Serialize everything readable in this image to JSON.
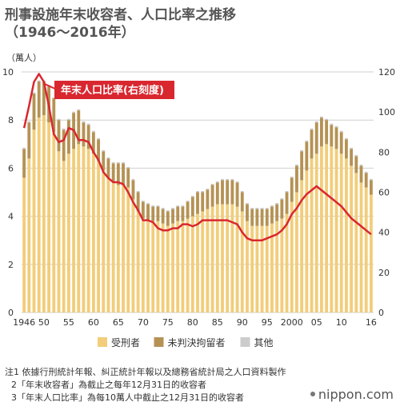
{
  "title_line1": "刑事設施年末收容者、人口比率之推移",
  "title_line2": "（1946～2016年）",
  "notes": [
    "注1 依據行刑統計年報、糾正統計年報以及總務省統計局之人口資料製作",
    "2「年末收容者」為截止之每年12月31日的收容者",
    "3「年末人口比率」為每10萬人中截止之12月31日的收容者"
  ],
  "brand": "nippon.com",
  "colors": {
    "sentenced": "#f2cd7a",
    "unsentenced": "#b59254",
    "other": "#cccccc",
    "ratio_line": "#d9272f",
    "label_bg": "#d9272f"
  },
  "chart_data": {
    "type": "bar",
    "stacked": true,
    "years": [
      1946,
      1947,
      1948,
      1949,
      1950,
      1951,
      1952,
      1953,
      1954,
      1955,
      1956,
      1957,
      1958,
      1959,
      1960,
      1961,
      1962,
      1963,
      1964,
      1965,
      1966,
      1967,
      1968,
      1969,
      1970,
      1971,
      1972,
      1973,
      1974,
      1975,
      1976,
      1977,
      1978,
      1979,
      1980,
      1981,
      1982,
      1983,
      1984,
      1985,
      1986,
      1987,
      1988,
      1989,
      1990,
      1991,
      1992,
      1993,
      1994,
      1995,
      1996,
      1997,
      1998,
      1999,
      2000,
      2001,
      2002,
      2003,
      2004,
      2005,
      2006,
      2007,
      2008,
      2009,
      2010,
      2011,
      2012,
      2013,
      2014,
      2015,
      2016
    ],
    "x_tick_labels": [
      "1946",
      "50",
      "55",
      "60",
      "65",
      "70",
      "75",
      "80",
      "85",
      "90",
      "95",
      "2000",
      "05",
      "10",
      "16"
    ],
    "x_tick_years": [
      1946,
      1950,
      1955,
      1960,
      1965,
      1970,
      1975,
      1980,
      1985,
      1990,
      1995,
      2000,
      2005,
      2010,
      2016
    ],
    "y_left": {
      "label": "（萬人）",
      "ticks": [
        "0",
        "2",
        "4",
        "6",
        "8",
        "10"
      ],
      "range": [
        0,
        10
      ]
    },
    "y_right": {
      "ticks": [
        "0",
        "20",
        "40",
        "60",
        "80",
        "100",
        "120"
      ],
      "range": [
        0,
        120
      ]
    },
    "series": [
      {
        "name": "受刑者",
        "type": "bar",
        "values": [
          5.6,
          6.4,
          7.6,
          8.1,
          8.2,
          7.9,
          7.5,
          6.7,
          6.3,
          6.6,
          6.8,
          7.0,
          6.9,
          6.8,
          6.6,
          6.3,
          5.9,
          5.6,
          5.4,
          5.3,
          5.3,
          5.2,
          4.7,
          4.2,
          3.9,
          3.8,
          3.8,
          3.8,
          3.7,
          3.6,
          3.7,
          3.8,
          3.8,
          3.9,
          4.0,
          4.1,
          4.2,
          4.3,
          4.4,
          4.5,
          4.5,
          4.5,
          4.5,
          4.4,
          4.2,
          3.8,
          3.6,
          3.6,
          3.6,
          3.6,
          3.7,
          3.8,
          3.9,
          4.1,
          4.6,
          5.0,
          5.5,
          5.9,
          6.4,
          6.6,
          6.9,
          7.0,
          6.9,
          6.8,
          6.6,
          6.4,
          6.1,
          5.8,
          5.4,
          5.2,
          4.9
        ]
      },
      {
        "name": "未判決拘留者",
        "type": "bar",
        "values": [
          1.2,
          1.5,
          1.5,
          1.5,
          1.4,
          1.5,
          1.4,
          1.3,
          1.3,
          1.4,
          1.5,
          1.4,
          1.0,
          1.0,
          0.9,
          0.9,
          0.8,
          0.8,
          0.8,
          0.9,
          0.9,
          0.8,
          0.8,
          0.8,
          0.7,
          0.7,
          0.6,
          0.6,
          0.6,
          0.6,
          0.6,
          0.6,
          0.6,
          0.7,
          0.8,
          0.9,
          0.8,
          0.8,
          0.9,
          0.9,
          1.0,
          1.0,
          1.0,
          1.0,
          0.8,
          0.7,
          0.7,
          0.7,
          0.7,
          0.7,
          0.7,
          0.7,
          0.8,
          0.9,
          1.0,
          1.1,
          1.2,
          1.2,
          1.2,
          1.3,
          1.2,
          1.0,
          0.9,
          0.9,
          0.9,
          0.8,
          0.7,
          0.7,
          0.7,
          0.6,
          0.6
        ]
      },
      {
        "name": "其他",
        "type": "bar",
        "values": [
          0.05,
          0.05,
          0.05,
          0.05,
          0.05,
          0.05,
          0.05,
          0.05,
          0.05,
          0.05,
          0.05,
          0.05,
          0.05,
          0.05,
          0.05,
          0.05,
          0.05,
          0.05,
          0.05,
          0.05,
          0.05,
          0.05,
          0.05,
          0.05,
          0.05,
          0.05,
          0.05,
          0.05,
          0.05,
          0.05,
          0.05,
          0.05,
          0.05,
          0.05,
          0.05,
          0.05,
          0.05,
          0.05,
          0.05,
          0.05,
          0.05,
          0.05,
          0.05,
          0.05,
          0.05,
          0.05,
          0.05,
          0.05,
          0.05,
          0.05,
          0.05,
          0.05,
          0.05,
          0.05,
          0.05,
          0.05,
          0.05,
          0.05,
          0.05,
          0.05,
          0.05,
          0.05,
          0.05,
          0.05,
          0.05,
          0.05,
          0.05,
          0.05,
          0.05,
          0.05,
          0.05
        ]
      },
      {
        "name": "年末人口比率(右刻度)",
        "type": "line",
        "axis": "right",
        "values": [
          92,
          103,
          115,
          119,
          115,
          103,
          89,
          85,
          86,
          92,
          91,
          86,
          86,
          85,
          80,
          76,
          70,
          67,
          65,
          65,
          64,
          60,
          55,
          51,
          46,
          46,
          45,
          42,
          41,
          41,
          42,
          42,
          44,
          44,
          43,
          44,
          46,
          46,
          46,
          46,
          46,
          46,
          45,
          44,
          40,
          37,
          36,
          36,
          36,
          37,
          38,
          39,
          41,
          44,
          49,
          52,
          56,
          59,
          61,
          63,
          61,
          59,
          57,
          55,
          53,
          50,
          47,
          45,
          43,
          41,
          39
        ]
      }
    ],
    "line_label": "年末人口比率(右刻度)",
    "legend": [
      "受刑者",
      "未判決拘留者",
      "其他"
    ],
    "legend_position": "bottom"
  }
}
